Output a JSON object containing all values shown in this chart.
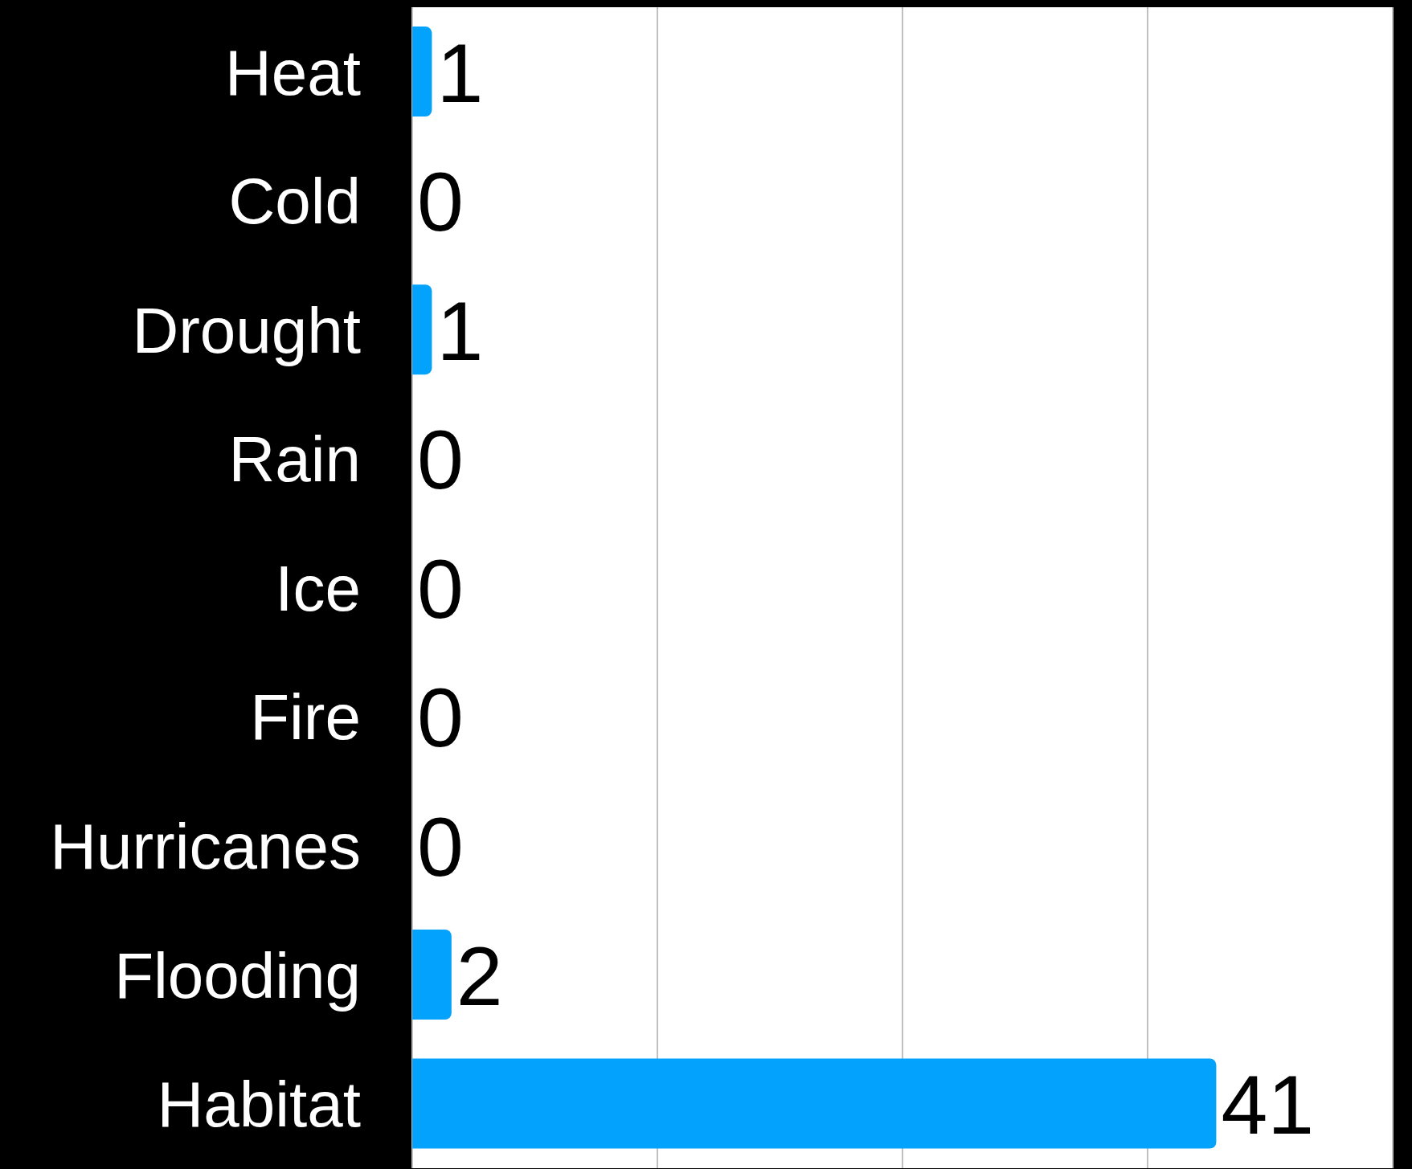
{
  "chart_data": {
    "type": "bar",
    "orientation": "horizontal",
    "categories": [
      "Heat",
      "Cold",
      "Drought",
      "Rain",
      "Ice",
      "Fire",
      "Hurricanes",
      "Flooding",
      "Habitat"
    ],
    "values": [
      1,
      0,
      1,
      0,
      0,
      0,
      0,
      2,
      41
    ],
    "color": "#03a3fd",
    "xlim": [
      0,
      50
    ],
    "xticks": [
      {
        "value": 0,
        "label": null
      },
      {
        "value": 12.5,
        "label": null
      },
      {
        "value": 25,
        "label": null
      },
      {
        "value": 37.5,
        "label": null
      },
      {
        "value": 50,
        "label": null
      }
    ],
    "grid": "x",
    "tick_labels": "y",
    "data_labels": true,
    "legend": false
  }
}
